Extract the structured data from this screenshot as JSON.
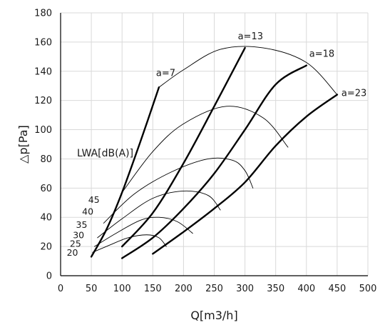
{
  "chart_data": {
    "type": "line",
    "xlabel": "Q[m3/h]",
    "ylabel": "△p[Pa]",
    "xlim": [
      0,
      500
    ],
    "ylim": [
      0,
      180
    ],
    "xticks": [
      "0",
      "50",
      "100",
      "150",
      "200",
      "250",
      "300",
      "350",
      "400",
      "450",
      "500"
    ],
    "yticks": [
      "0",
      "20",
      "40",
      "60",
      "80",
      "100",
      "120",
      "140",
      "160",
      "180"
    ],
    "grid": true,
    "series": [
      {
        "name": "a=7",
        "role": "system",
        "x": [
          50,
          75,
          100,
          130,
          160
        ],
        "y": [
          13,
          32,
          57,
          92,
          129
        ]
      },
      {
        "name": "a=13",
        "role": "system",
        "x": [
          100,
          150,
          200,
          250,
          300
        ],
        "y": [
          20,
          43,
          77,
          116,
          156
        ]
      },
      {
        "name": "a=18",
        "role": "system",
        "x": [
          100,
          150,
          200,
          250,
          300,
          350,
          400
        ],
        "y": [
          12,
          26,
          46,
          70,
          100,
          131,
          144
        ]
      },
      {
        "name": "a=23",
        "role": "system",
        "x": [
          150,
          200,
          250,
          300,
          350,
          400,
          450
        ],
        "y": [
          15,
          30,
          46,
          64,
          89,
          109,
          124
        ]
      },
      {
        "name": "",
        "role": "fan",
        "x": [
          160,
          200,
          260,
          330,
          400,
          450
        ],
        "y": [
          129,
          141,
          155,
          156,
          146,
          124
        ]
      },
      {
        "name": "",
        "role": "fan",
        "x": [
          100,
          150,
          200,
          270,
          330,
          370
        ],
        "y": [
          57,
          85,
          104,
          116,
          108,
          88
        ]
      },
      {
        "name": "",
        "role": "fan",
        "x": [
          70,
          120,
          180,
          240,
          280,
          300,
          313
        ],
        "y": [
          36,
          56,
          71,
          80,
          79,
          72,
          60
        ]
      },
      {
        "name": "",
        "role": "fan",
        "x": [
          60,
          100,
          150,
          200,
          240,
          260
        ],
        "y": [
          26,
          39,
          53,
          58,
          55,
          45
        ]
      },
      {
        "name": "",
        "role": "fan",
        "x": [
          55,
          90,
          130,
          160,
          190,
          215
        ],
        "y": [
          20,
          29,
          38,
          40,
          37,
          29
        ]
      },
      {
        "name": "",
        "role": "fan",
        "x": [
          52,
          80,
          110,
          140,
          160,
          172
        ],
        "y": [
          16,
          21,
          26,
          28,
          26,
          20
        ]
      }
    ],
    "curve_labels": [
      "a=7",
      "a=13",
      "a=18",
      "a=23"
    ],
    "lwa_title": "LWA[dB(A)]",
    "lwa_values": [
      "45",
      "40",
      "35",
      "30",
      "25",
      "20"
    ],
    "lwa_curve": {
      "x": [
        50,
        70,
        90,
        110,
        130,
        145,
        160
      ],
      "y": [
        13,
        28,
        43,
        59,
        79,
        96,
        129
      ]
    }
  }
}
